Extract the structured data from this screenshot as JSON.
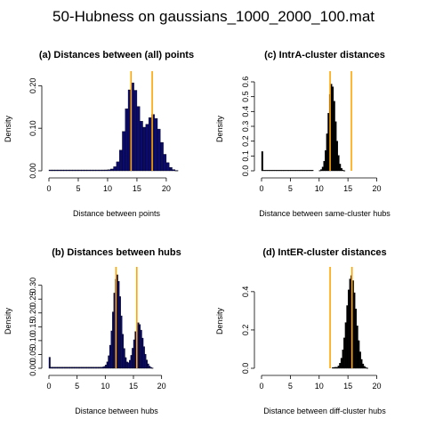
{
  "page_title": "50-Hubness on gaussians_1000_2000_100.mat",
  "colors": {
    "bar_navy": "#0b0b6e",
    "bar_black": "#000000",
    "marker_orange": "#ffa500",
    "axis": "#000000"
  },
  "chart_data": [
    {
      "type": "histogram",
      "title": "(a) Distances between (all) points",
      "xlabel": "Distance between points",
      "ylabel": "Density",
      "xlim": [
        0,
        23.5
      ],
      "ylim": [
        0,
        0.23
      ],
      "xticks": [
        0,
        5,
        10,
        15,
        20
      ],
      "yticks": [
        0.0,
        0.1,
        0.2
      ],
      "ytick_labels": [
        "0.00",
        "0.10",
        "0.20"
      ],
      "bin_width": 0.5,
      "bar_color": "navy",
      "vlines": [
        14.0,
        17.6
      ],
      "components": [
        {
          "mean": 14.2,
          "sd": 1.15,
          "weight": 0.59
        },
        {
          "mean": 17.8,
          "sd": 1.25,
          "weight": 0.41
        }
      ],
      "baseline_range": [
        0,
        11.5
      ],
      "baseline_density": 0.002,
      "spike": null
    },
    {
      "type": "histogram",
      "title": "(c) IntrA-cluster distances",
      "xlabel": "Distance between same-cluster hubs",
      "ylabel": "Density",
      "xlim": [
        0,
        21
      ],
      "ylim": [
        0,
        0.66
      ],
      "xticks": [
        0,
        5,
        10,
        15,
        20
      ],
      "yticks": [
        0.0,
        0.1,
        0.2,
        0.3,
        0.4,
        0.5,
        0.6
      ],
      "ytick_labels": [
        "0.0",
        "0.1",
        "0.2",
        "0.3",
        "0.4",
        "0.5",
        "0.6"
      ],
      "bin_width": 0.25,
      "bar_color": "black",
      "vlines": [
        11.9,
        15.6
      ],
      "components": [
        {
          "mean": 12.2,
          "sd": 0.63,
          "weight": 0.93
        }
      ],
      "baseline_range": [
        0,
        9
      ],
      "baseline_density": 0.004,
      "spike": {
        "x": 0,
        "density": 0.13
      }
    },
    {
      "type": "histogram",
      "title": "(b) Distances between hubs",
      "xlabel": "Distance between hubs",
      "ylabel": "Density",
      "xlim": [
        0,
        21
      ],
      "ylim": [
        0,
        0.36
      ],
      "xticks": [
        0,
        5,
        10,
        15,
        20
      ],
      "yticks": [
        0.0,
        0.05,
        0.1,
        0.15,
        0.2,
        0.25,
        0.3
      ],
      "ytick_labels": [
        "0.00",
        "0.05",
        "0.10",
        "0.15",
        "0.20",
        "0.25",
        "0.30"
      ],
      "bin_width": 0.25,
      "bar_color": "navy",
      "vlines": [
        11.9,
        15.6
      ],
      "components": [
        {
          "mean": 12.1,
          "sd": 0.72,
          "weight": 0.61
        },
        {
          "mean": 15.9,
          "sd": 0.8,
          "weight": 0.33
        }
      ],
      "baseline_range": [
        0,
        11
      ],
      "baseline_density": 0.004,
      "spike": {
        "x": 0,
        "density": 0.04
      }
    },
    {
      "type": "histogram",
      "title": "(d) IntER-cluster distances",
      "xlabel": "Distance between diff-cluster hubs",
      "ylabel": "Density",
      "xlim": [
        0,
        21
      ],
      "ylim": [
        0,
        0.52
      ],
      "xticks": [
        0,
        5,
        10,
        15,
        20
      ],
      "yticks": [
        0.0,
        0.2,
        0.4
      ],
      "ytick_labels": [
        "0.0",
        "0.2",
        "0.4"
      ],
      "bin_width": 0.25,
      "bar_color": "black",
      "vlines": [
        11.9,
        15.7
      ],
      "components": [
        {
          "mean": 15.6,
          "sd": 0.82,
          "weight": 0.995
        }
      ],
      "baseline_range": [
        12.3,
        13
      ],
      "baseline_density": 0.004,
      "spike": null
    }
  ]
}
